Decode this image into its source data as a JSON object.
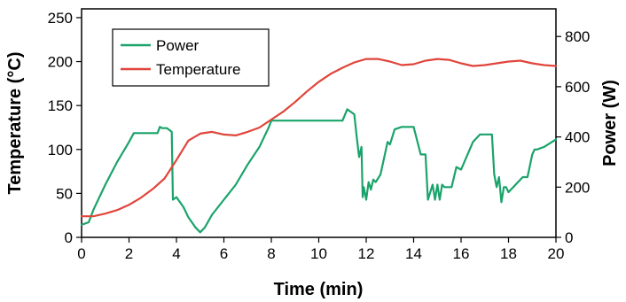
{
  "chart_data": {
    "type": "line",
    "xlabel": "Time (min)",
    "ylabel_left": "Temperature (°C)",
    "ylabel_right": "Power (W)",
    "xlim": [
      0,
      20
    ],
    "ylim_left": [
      0,
      260
    ],
    "ylim_right": [
      0,
      910
    ],
    "x_ticks": [
      0,
      2,
      4,
      6,
      8,
      10,
      12,
      14,
      16,
      18,
      20
    ],
    "y_left_ticks": [
      0,
      50,
      100,
      150,
      200,
      250
    ],
    "y_right_ticks": [
      0,
      200,
      400,
      600,
      800
    ],
    "grid": false,
    "legend_position": "top-left",
    "series": [
      {
        "name": "Power",
        "axis": "right",
        "color": "#1aa36a",
        "x": [
          0,
          0.3,
          0.5,
          1.0,
          1.5,
          2.0,
          2.2,
          3.2,
          3.3,
          3.4,
          3.6,
          3.8,
          3.85,
          4.0,
          4.3,
          4.5,
          4.8,
          5.0,
          5.2,
          5.5,
          6.0,
          6.5,
          7.0,
          7.5,
          7.9,
          8.0,
          9.0,
          10.0,
          11.0,
          11.2,
          11.5,
          11.6,
          11.7,
          11.8,
          11.85,
          11.9,
          12.0,
          12.1,
          12.2,
          12.3,
          12.4,
          12.6,
          12.9,
          13.0,
          13.2,
          13.5,
          14.0,
          14.3,
          14.5,
          14.6,
          14.8,
          14.9,
          15.0,
          15.1,
          15.2,
          15.3,
          15.6,
          15.8,
          16.0,
          16.5,
          16.8,
          17.0,
          17.3,
          17.4,
          17.5,
          17.6,
          17.7,
          17.8,
          17.9,
          18.0,
          18.4,
          18.6,
          18.8,
          19.0,
          19.1,
          19.2,
          19.5,
          20.0
        ],
        "values": [
          50,
          60,
          110,
          210,
          300,
          380,
          415,
          415,
          440,
          435,
          435,
          420,
          150,
          160,
          120,
          80,
          40,
          20,
          40,
          90,
          150,
          210,
          290,
          360,
          440,
          465,
          465,
          465,
          465,
          510,
          490,
          400,
          320,
          360,
          160,
          200,
          150,
          220,
          190,
          230,
          220,
          250,
          380,
          370,
          430,
          440,
          440,
          330,
          330,
          150,
          210,
          150,
          210,
          150,
          210,
          200,
          200,
          280,
          270,
          380,
          410,
          410,
          410,
          250,
          200,
          240,
          140,
          200,
          200,
          180,
          220,
          240,
          240,
          330,
          350,
          350,
          360,
          390
        ]
      },
      {
        "name": "Temperature",
        "axis": "left",
        "color": "#e0453b",
        "x": [
          0,
          0.5,
          1.0,
          1.5,
          2.0,
          2.5,
          3.0,
          3.5,
          4.0,
          4.5,
          5.0,
          5.5,
          6.0,
          6.5,
          7.0,
          7.5,
          8.0,
          8.5,
          9.0,
          9.5,
          10.0,
          10.5,
          11.0,
          11.5,
          12.0,
          12.5,
          13.0,
          13.5,
          14.0,
          14.5,
          15.0,
          15.5,
          16.0,
          16.5,
          17.0,
          17.5,
          18.0,
          18.5,
          19.0,
          19.5,
          20.0
        ],
        "values": [
          24,
          24,
          27,
          31,
          37,
          45,
          55,
          67,
          88,
          110,
          118,
          120,
          117,
          116,
          120,
          125,
          134,
          143,
          154,
          166,
          177,
          186,
          193,
          199,
          203,
          203,
          200,
          196,
          197,
          201,
          203,
          202,
          198,
          195,
          196,
          198,
          200,
          201,
          198,
          196,
          195
        ]
      }
    ]
  }
}
